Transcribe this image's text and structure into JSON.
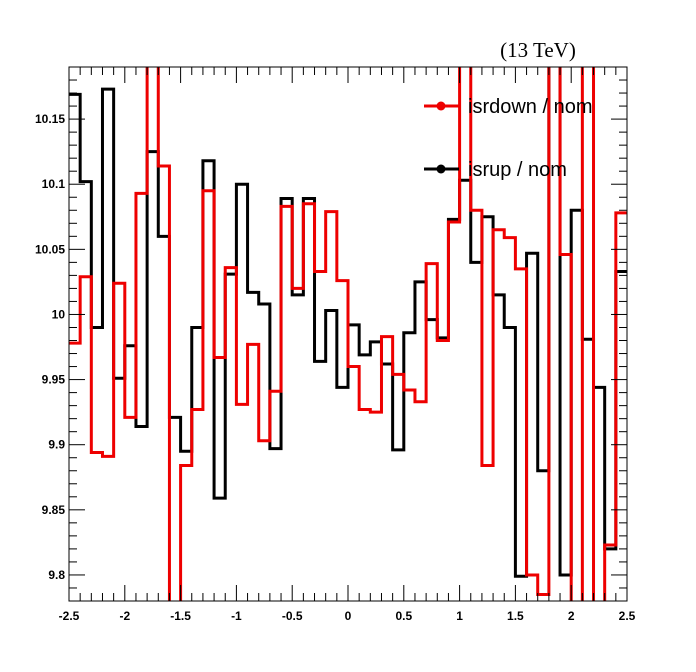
{
  "chart_data": {
    "type": "line",
    "style": "step",
    "energy_label": "(13 TeV)",
    "xlim": [
      -2.5,
      2.5
    ],
    "ylim": [
      9.78,
      10.19
    ],
    "x_ticks": [
      -2.5,
      -2,
      -1.5,
      -1,
      -0.5,
      0,
      0.5,
      1,
      1.5,
      2,
      2.5
    ],
    "x_tick_labels": [
      "-2.5",
      "-2",
      "-1.5",
      "-1",
      "-0.5",
      "0",
      "0.5",
      "1",
      "1.5",
      "2",
      "2.5"
    ],
    "y_ticks": [
      9.8,
      9.85,
      9.9,
      9.95,
      10,
      10.05,
      10.1,
      10.15
    ],
    "y_tick_labels": [
      "9.8",
      "9.85",
      "9.9",
      "9.95",
      "10",
      "10.05",
      "10.1",
      "10.15"
    ],
    "bin_edges": [
      -2.5,
      -2.4,
      -2.3,
      -2.2,
      -2.1,
      -2.0,
      -1.9,
      -1.8,
      -1.7,
      -1.6,
      -1.5,
      -1.4,
      -1.3,
      -1.2,
      -1.1,
      -1.0,
      -0.9,
      -0.8,
      -0.7,
      -0.6,
      -0.5,
      -0.4,
      -0.3,
      -0.2,
      -0.1,
      0.0,
      0.1,
      0.2,
      0.3,
      0.4,
      0.5,
      0.6,
      0.7,
      0.8,
      0.9,
      1.0,
      1.1,
      1.2,
      1.3,
      1.4,
      1.5,
      1.6,
      1.7,
      1.8,
      1.9,
      2.0,
      2.1,
      2.2,
      2.3,
      2.4,
      2.5
    ],
    "series": [
      {
        "name": "isrdown / nom",
        "color": "#ee0000",
        "values": [
          9.978,
          10.029,
          9.894,
          9.891,
          10.024,
          9.921,
          10.093,
          10.2,
          10.114,
          9.77,
          9.884,
          9.927,
          10.095,
          9.967,
          10.036,
          9.931,
          9.977,
          9.903,
          9.941,
          10.083,
          10.02,
          10.085,
          10.033,
          10.079,
          10.026,
          9.96,
          9.927,
          9.925,
          9.983,
          9.954,
          9.942,
          9.933,
          10.039,
          9.98,
          10.071,
          10.2,
          10.08,
          9.884,
          10.065,
          10.059,
          10.035,
          9.8,
          9.785,
          10.2,
          10.046,
          9.77,
          10.2,
          9.77,
          9.823,
          10.078
        ]
      },
      {
        "name": "isrup / nom",
        "color": "#000000",
        "values": [
          10.169,
          10.102,
          9.99,
          10.173,
          9.951,
          9.976,
          9.914,
          10.125,
          10.06,
          9.921,
          9.895,
          9.99,
          10.118,
          9.859,
          10.031,
          10.1,
          10.017,
          10.008,
          9.897,
          10.089,
          10.015,
          10.089,
          9.964,
          10.003,
          9.944,
          9.992,
          9.969,
          9.979,
          9.962,
          9.896,
          9.986,
          10.025,
          9.996,
          9.982,
          10.073,
          10.103,
          10.04,
          10.075,
          10.015,
          9.99,
          9.799,
          10.047,
          9.88,
          10.25,
          9.8,
          10.08,
          9.981,
          9.944,
          9.82,
          10.033
        ]
      }
    ],
    "legend_position": "top-right",
    "grid": false
  }
}
